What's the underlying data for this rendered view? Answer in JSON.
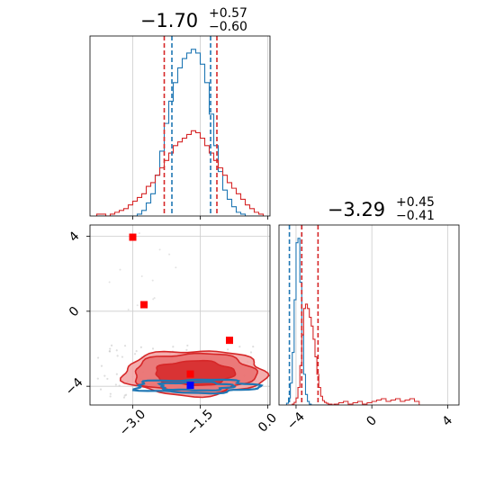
{
  "chart_data": [
    {
      "type": "histogram",
      "panel": "top-left",
      "title": {
        "value": "−1.70",
        "sup": "+0.57",
        "sub": "−0.60"
      },
      "xlim": [
        -3.95,
        0.05
      ],
      "grid": true,
      "bins": [
        -3.8,
        -3.7,
        -3.6,
        -3.5,
        -3.4,
        -3.3,
        -3.2,
        -3.1,
        -3.0,
        -2.9,
        -2.8,
        -2.7,
        -2.6,
        -2.5,
        -2.4,
        -2.3,
        -2.2,
        -2.1,
        -2.0,
        -1.9,
        -1.8,
        -1.7,
        -1.6,
        -1.5,
        -1.4,
        -1.3,
        -1.2,
        -1.1,
        -1.0,
        -0.9,
        -0.8,
        -0.7,
        -0.6,
        -0.5,
        -0.4,
        -0.3,
        -0.2
      ],
      "series": [
        {
          "color": "#1f77b4",
          "counts": [
            0,
            0,
            0,
            0,
            0,
            0,
            0,
            0,
            0,
            1,
            3,
            7,
            12,
            22,
            35,
            50,
            62,
            72,
            80,
            85,
            88,
            90,
            88,
            82,
            72,
            55,
            38,
            24,
            14,
            9,
            5,
            2,
            1,
            0,
            0,
            0,
            0
          ]
        },
        {
          "color": "#d62728",
          "counts": [
            1,
            1,
            0,
            1,
            2,
            3,
            4,
            6,
            8,
            10,
            12,
            16,
            18,
            22,
            26,
            30,
            34,
            38,
            40,
            42,
            44,
            46,
            45,
            42,
            38,
            34,
            30,
            26,
            22,
            18,
            15,
            12,
            9,
            6,
            4,
            2,
            1
          ]
        }
      ],
      "vlines": [
        {
          "x": -2.3,
          "color": "#d62728"
        },
        {
          "x": -1.13,
          "color": "#d62728"
        },
        {
          "x": -2.13,
          "color": "#1f77b4"
        },
        {
          "x": -1.27,
          "color": "#1f77b4"
        }
      ]
    },
    {
      "type": "histogram",
      "panel": "bottom-right",
      "title": {
        "value": "−3.29",
        "sup": "+0.45",
        "sub": "−0.41"
      },
      "xlim": [
        -4.9,
        4.6
      ],
      "xticks": [
        -4,
        0,
        4
      ],
      "grid": true,
      "bins": [
        -4.5,
        -4.4,
        -4.3,
        -4.2,
        -4.1,
        -4.0,
        -3.9,
        -3.8,
        -3.7,
        -3.6,
        -3.5,
        -3.4,
        -3.3,
        -3.2,
        -3.1,
        -3.0,
        -2.9,
        -2.8,
        -2.7,
        -2.6,
        -2.5,
        -2.4,
        -2.3,
        -2.2,
        -2.1,
        -2.0
      ],
      "series": [
        {
          "color": "#1f77b4",
          "counts": [
            2,
            8,
            25,
            60,
            120,
            185,
            190,
            140,
            80,
            35,
            12,
            4,
            1,
            0,
            0,
            0,
            0,
            0,
            0,
            0,
            0,
            0,
            0,
            0,
            0,
            0
          ]
        },
        {
          "color": "#d62728",
          "counts": [
            0,
            0,
            0,
            1,
            3,
            8,
            20,
            45,
            80,
            110,
            115,
            110,
            100,
            90,
            75,
            55,
            35,
            20,
            10,
            5,
            3,
            2,
            1,
            1,
            0,
            0
          ]
        }
      ],
      "extra_series": {
        "color": "#d62728",
        "range": [
          -2.0,
          2.5
        ],
        "level": 0.015
      },
      "vlines": [
        {
          "x": -4.35,
          "color": "#1f77b4"
        },
        {
          "x": -3.7,
          "color": "#1f77b4"
        },
        {
          "x": -3.7,
          "color": "#d62728"
        },
        {
          "x": -2.84,
          "color": "#d62728"
        }
      ]
    },
    {
      "type": "contour",
      "panel": "bottom-left",
      "xlim": [
        -3.95,
        0.05
      ],
      "ylim": [
        -5.0,
        4.6
      ],
      "xticks": [
        -3.0,
        -1.5,
        0.0
      ],
      "xtick_labels": [
        "−3.0",
        "−1.5",
        "0.0"
      ],
      "yticks": [
        -4,
        0,
        4
      ],
      "ytick_labels": [
        "−4",
        "0",
        "4"
      ],
      "grid": true,
      "red_contours": [
        {
          "cx": -1.63,
          "cy": -3.3,
          "rx": 1.58,
          "ry": 1.2
        },
        {
          "cx": -1.63,
          "cy": -3.3,
          "rx": 1.35,
          "ry": 1.05
        },
        {
          "cx": -1.63,
          "cy": -3.3,
          "rx": 0.88,
          "ry": 0.65
        }
      ],
      "blue_contours": [
        {
          "cx": -1.6,
          "cy": -4.0,
          "rx": 1.35,
          "ry": 0.35
        },
        {
          "cx": -1.6,
          "cy": -4.0,
          "rx": 0.8,
          "ry": 0.22
        }
      ],
      "red_markers": [
        {
          "x": -3.0,
          "y": 3.95
        },
        {
          "x": -2.75,
          "y": 0.35
        },
        {
          "x": -0.85,
          "y": -1.55
        },
        {
          "x": -1.72,
          "y": -3.35
        }
      ],
      "blue_markers": [
        {
          "x": -1.72,
          "y": -3.95
        }
      ]
    }
  ]
}
